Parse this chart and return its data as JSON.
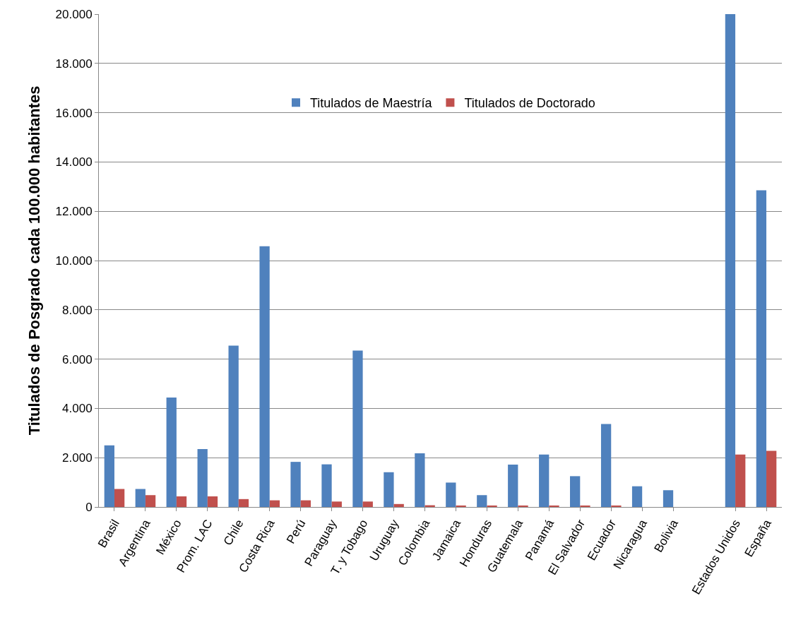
{
  "chart_data": {
    "type": "bar",
    "ylabel": "Titulados de Posgrado cada 100.000 habitantes",
    "categories": [
      "Brasil",
      "Argentina",
      "México",
      "Prom. LAC",
      "Chile",
      "Costa Rica",
      "Perú",
      "Paraguay",
      "T. y Tobago",
      "Uruguay",
      "Colombia",
      "Jamaica",
      "Honduras",
      "Guatemala",
      "Panamá",
      "El Salvador",
      "Ecuador",
      "Nicaragua",
      "Bolivia",
      null,
      "Estados Unidos",
      "España"
    ],
    "series": [
      {
        "name": "Titulados de Maestría",
        "color": "#4f81bd",
        "values": [
          2500,
          730,
          4440,
          2350,
          6550,
          10580,
          1830,
          1730,
          6350,
          1410,
          2180,
          990,
          480,
          1720,
          2130,
          1250,
          3370,
          840,
          680,
          null,
          20000,
          12850
        ]
      },
      {
        "name": "Titulados de Doctorado",
        "color": "#c0504d",
        "values": [
          730,
          480,
          430,
          430,
          320,
          270,
          270,
          220,
          220,
          120,
          70,
          60,
          60,
          60,
          60,
          60,
          60,
          0,
          0,
          null,
          2130,
          2280
        ]
      }
    ],
    "ylim": [
      0,
      20000
    ],
    "yticks": [
      0,
      {
        "value": 2000,
        "label": "2.000"
      },
      {
        "value": 4000,
        "label": "4.000"
      },
      {
        "value": 6000,
        "label": "6.000"
      },
      {
        "value": 8000,
        "label": "8.000"
      },
      {
        "value": 10000,
        "label": "10.000"
      },
      {
        "value": 12000,
        "label": "12.000"
      },
      {
        "value": 14000,
        "label": "14.000"
      },
      {
        "value": 16000,
        "label": "16.000"
      },
      {
        "value": 18000,
        "label": "18.000"
      },
      {
        "value": 20000,
        "label": "20.000"
      }
    ],
    "grid": "y",
    "legend": "top"
  }
}
